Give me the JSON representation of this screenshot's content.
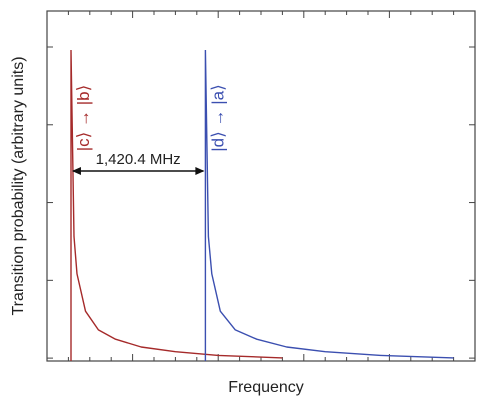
{
  "chart_data": {
    "type": "line",
    "title": "",
    "xlabel": "Frequency",
    "ylabel": "Transition probability (arbitrary units)",
    "x_ticks_labeled": false,
    "y_ticks_labeled": false,
    "grid": false,
    "xlim": [
      0,
      100
    ],
    "ylim": [
      0,
      100
    ],
    "series": [
      {
        "name": "|c⟩ → |b⟩",
        "color": "#a52a2a",
        "points": [
          [
            5.6,
            0
          ],
          [
            5.6,
            100
          ],
          [
            6.3,
            40
          ],
          [
            7,
            28
          ],
          [
            9,
            16
          ],
          [
            12,
            10
          ],
          [
            16,
            7
          ],
          [
            22,
            4.5
          ],
          [
            30,
            3
          ],
          [
            40,
            1.8
          ],
          [
            55,
            1
          ]
        ]
      },
      {
        "name": "|d⟩ → |a⟩",
        "color": "#3b4fb0",
        "points": [
          [
            37,
            0
          ],
          [
            37,
            100
          ],
          [
            37.7,
            40
          ],
          [
            38.5,
            28
          ],
          [
            40.5,
            16
          ],
          [
            44,
            10
          ],
          [
            49,
            7
          ],
          [
            56,
            4.5
          ],
          [
            65,
            3
          ],
          [
            78,
            1.8
          ],
          [
            95,
            1
          ]
        ]
      }
    ],
    "annotations": [
      {
        "text": "1,420.4 MHz",
        "from_x": 5.6,
        "to_x": 37,
        "y": 61
      }
    ]
  }
}
